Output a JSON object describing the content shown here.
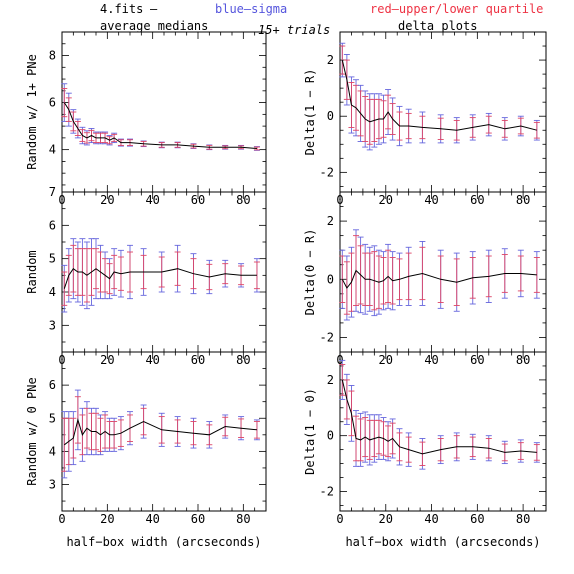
{
  "header": {
    "file_label": "4.fits",
    "dash": "–",
    "blue_label": "blue–sigma",
    "red_label": "red–upper/lower quartile",
    "left_title": "average medians",
    "center_title": "15+ trials",
    "right_title": "delta plots"
  },
  "colors": {
    "median": "#000000",
    "sigma": "#6666dd",
    "quartile": "#dd4466"
  },
  "chart_data": [
    {
      "type": "line",
      "panel": "top-left",
      "ylabel": "Random w/ 1+ PNe",
      "xlim": [
        0,
        90
      ],
      "ylim": [
        2.2,
        9
      ],
      "xticks": [
        0,
        20,
        40,
        60,
        80
      ],
      "yticks": [
        4,
        6,
        8
      ],
      "x": [
        1,
        3,
        5,
        7,
        9,
        11,
        13,
        15,
        17,
        19,
        21,
        23,
        26,
        30,
        36,
        44,
        51,
        58,
        65,
        72,
        79,
        86
      ],
      "y": [
        6.0,
        5.7,
        5.2,
        4.9,
        4.6,
        4.5,
        4.6,
        4.5,
        4.5,
        4.5,
        4.4,
        4.5,
        4.3,
        4.3,
        4.25,
        4.2,
        4.2,
        4.15,
        4.1,
        4.1,
        4.1,
        4.05
      ],
      "err_sigma": [
        0.8,
        0.7,
        0.5,
        0.4,
        0.35,
        0.3,
        0.3,
        0.25,
        0.25,
        0.25,
        0.2,
        0.2,
        0.15,
        0.15,
        0.12,
        0.12,
        0.12,
        0.1,
        0.1,
        0.08,
        0.08,
        0.08
      ],
      "err_quartile": [
        0.6,
        0.5,
        0.4,
        0.3,
        0.25,
        0.22,
        0.22,
        0.2,
        0.2,
        0.2,
        0.15,
        0.15,
        0.12,
        0.12,
        0.1,
        0.1,
        0.1,
        0.08,
        0.08,
        0.06,
        0.06,
        0.06
      ]
    },
    {
      "type": "line",
      "panel": "top-right",
      "ylabel": "Delta(1 − R)",
      "xlim": [
        0,
        90
      ],
      "ylim": [
        -2.7,
        3
      ],
      "xticks": [
        0,
        20,
        40,
        60,
        80
      ],
      "yticks": [
        -2,
        0,
        2
      ],
      "x": [
        1,
        3,
        5,
        7,
        9,
        11,
        13,
        15,
        17,
        19,
        21,
        23,
        26,
        30,
        36,
        44,
        51,
        58,
        65,
        72,
        79,
        86
      ],
      "y": [
        2.0,
        1.3,
        0.4,
        0.3,
        0.1,
        -0.1,
        -0.2,
        -0.15,
        -0.1,
        -0.1,
        0.15,
        -0.1,
        -0.35,
        -0.35,
        -0.4,
        -0.45,
        -0.5,
        -0.4,
        -0.3,
        -0.45,
        -0.35,
        -0.5
      ],
      "err_sigma": [
        0.6,
        0.9,
        1.0,
        1.0,
        1.0,
        1.0,
        1.0,
        0.95,
        0.9,
        0.85,
        0.8,
        0.75,
        0.7,
        0.6,
        0.55,
        0.5,
        0.45,
        0.45,
        0.4,
        0.4,
        0.35,
        0.35
      ],
      "err_quartile": [
        0.5,
        0.7,
        0.8,
        0.8,
        0.8,
        0.8,
        0.8,
        0.75,
        0.7,
        0.65,
        0.6,
        0.55,
        0.5,
        0.45,
        0.4,
        0.38,
        0.35,
        0.35,
        0.3,
        0.3,
        0.28,
        0.28
      ]
    },
    {
      "type": "line",
      "panel": "middle-left",
      "ylabel": "Random",
      "xlim": [
        0,
        90
      ],
      "ylim": [
        2.2,
        7
      ],
      "xticks": [
        0,
        20,
        40,
        60,
        80
      ],
      "yticks": [
        3,
        4,
        5,
        6,
        7
      ],
      "x": [
        1,
        3,
        5,
        7,
        9,
        11,
        13,
        15,
        17,
        19,
        21,
        23,
        26,
        30,
        36,
        44,
        51,
        58,
        65,
        72,
        79,
        86
      ],
      "y": [
        4.1,
        4.5,
        4.7,
        4.6,
        4.6,
        4.5,
        4.6,
        4.7,
        4.6,
        4.5,
        4.4,
        4.6,
        4.55,
        4.6,
        4.6,
        4.6,
        4.7,
        4.55,
        4.45,
        4.55,
        4.5,
        4.5
      ],
      "err_sigma": [
        0.7,
        0.8,
        0.9,
        0.9,
        1.0,
        1.0,
        1.0,
        0.9,
        0.8,
        0.7,
        0.6,
        0.7,
        0.7,
        0.8,
        0.7,
        0.6,
        0.7,
        0.6,
        0.5,
        0.4,
        0.35,
        0.5
      ],
      "err_quartile": [
        0.5,
        0.6,
        0.7,
        0.7,
        0.7,
        0.8,
        0.7,
        0.6,
        0.6,
        0.5,
        0.45,
        0.5,
        0.5,
        0.6,
        0.5,
        0.45,
        0.5,
        0.45,
        0.38,
        0.3,
        0.28,
        0.4
      ]
    },
    {
      "type": "line",
      "panel": "middle-right",
      "ylabel": "Delta(0 − R)",
      "xlim": [
        0,
        90
      ],
      "ylim": [
        -2.5,
        3
      ],
      "xticks": [
        0,
        20,
        40,
        60,
        80
      ],
      "yticks": [
        -2,
        0,
        2
      ],
      "x": [
        1,
        3,
        5,
        7,
        9,
        11,
        13,
        15,
        17,
        19,
        21,
        23,
        26,
        30,
        36,
        44,
        51,
        58,
        65,
        72,
        79,
        86
      ],
      "y": [
        0.0,
        -0.3,
        -0.1,
        0.3,
        0.15,
        0.0,
        0.0,
        -0.05,
        -0.1,
        -0.05,
        0.1,
        -0.05,
        0.0,
        0.1,
        0.2,
        0.0,
        -0.1,
        0.05,
        0.1,
        0.2,
        0.2,
        0.15
      ],
      "err_sigma": [
        1.0,
        1.1,
        1.2,
        1.4,
        1.3,
        1.2,
        1.1,
        1.2,
        1.1,
        1.0,
        1.1,
        1.0,
        0.9,
        1.0,
        1.1,
        1.0,
        1.0,
        0.9,
        0.9,
        0.85,
        0.8,
        0.8
      ],
      "err_quartile": [
        0.8,
        0.9,
        1.0,
        1.2,
        1.0,
        0.9,
        0.9,
        1.0,
        0.9,
        0.8,
        0.9,
        0.8,
        0.7,
        0.8,
        0.9,
        0.8,
        0.8,
        0.7,
        0.7,
        0.65,
        0.6,
        0.6
      ]
    },
    {
      "type": "line",
      "panel": "bottom-left",
      "ylabel": "Random w/ 0 PNe",
      "xlim": [
        0,
        90
      ],
      "ylim": [
        2.2,
        7
      ],
      "xticks": [
        0,
        20,
        40,
        60,
        80
      ],
      "yticks": [
        3,
        4,
        5,
        6
      ],
      "x": [
        1,
        3,
        5,
        7,
        9,
        11,
        13,
        15,
        17,
        19,
        21,
        23,
        26,
        30,
        36,
        44,
        51,
        58,
        65,
        72,
        79,
        86
      ],
      "y": [
        4.2,
        4.3,
        4.4,
        4.95,
        4.5,
        4.7,
        4.6,
        4.6,
        4.5,
        4.6,
        4.5,
        4.5,
        4.55,
        4.7,
        4.9,
        4.65,
        4.6,
        4.55,
        4.5,
        4.75,
        4.7,
        4.65
      ],
      "err_sigma": [
        1.0,
        0.9,
        0.8,
        0.9,
        0.8,
        0.8,
        0.7,
        0.7,
        0.6,
        0.6,
        0.5,
        0.5,
        0.5,
        0.5,
        0.5,
        0.5,
        0.45,
        0.45,
        0.4,
        0.35,
        0.35,
        0.3
      ],
      "err_quartile": [
        0.8,
        0.7,
        0.6,
        0.7,
        0.6,
        0.6,
        0.55,
        0.55,
        0.5,
        0.5,
        0.4,
        0.4,
        0.4,
        0.4,
        0.4,
        0.4,
        0.35,
        0.35,
        0.3,
        0.28,
        0.28,
        0.25
      ]
    },
    {
      "type": "line",
      "panel": "bottom-right",
      "ylabel": "Delta(1 − 0)",
      "xlabel": "half−box width (arcseconds)",
      "xlim": [
        0,
        90
      ],
      "ylim": [
        -2.7,
        3
      ],
      "xticks": [
        0,
        20,
        40,
        60,
        80
      ],
      "yticks": [
        -2,
        0,
        2
      ],
      "x": [
        1,
        3,
        5,
        7,
        9,
        11,
        13,
        15,
        17,
        19,
        21,
        23,
        26,
        30,
        36,
        44,
        51,
        58,
        65,
        72,
        79,
        86
      ],
      "y": [
        2.0,
        1.3,
        0.8,
        -0.1,
        -0.15,
        -0.05,
        -0.15,
        -0.1,
        -0.05,
        -0.1,
        -0.2,
        -0.1,
        -0.4,
        -0.5,
        -0.65,
        -0.5,
        -0.4,
        -0.4,
        -0.45,
        -0.6,
        -0.55,
        -0.6
      ],
      "err_sigma": [
        0.7,
        0.9,
        1.0,
        1.0,
        0.95,
        0.9,
        0.9,
        0.85,
        0.8,
        0.75,
        0.7,
        0.7,
        0.65,
        0.6,
        0.55,
        0.5,
        0.5,
        0.45,
        0.45,
        0.4,
        0.4,
        0.35
      ],
      "err_quartile": [
        0.55,
        0.7,
        0.8,
        0.8,
        0.75,
        0.7,
        0.7,
        0.65,
        0.6,
        0.6,
        0.55,
        0.55,
        0.5,
        0.45,
        0.42,
        0.4,
        0.4,
        0.35,
        0.35,
        0.3,
        0.3,
        0.28
      ]
    }
  ]
}
